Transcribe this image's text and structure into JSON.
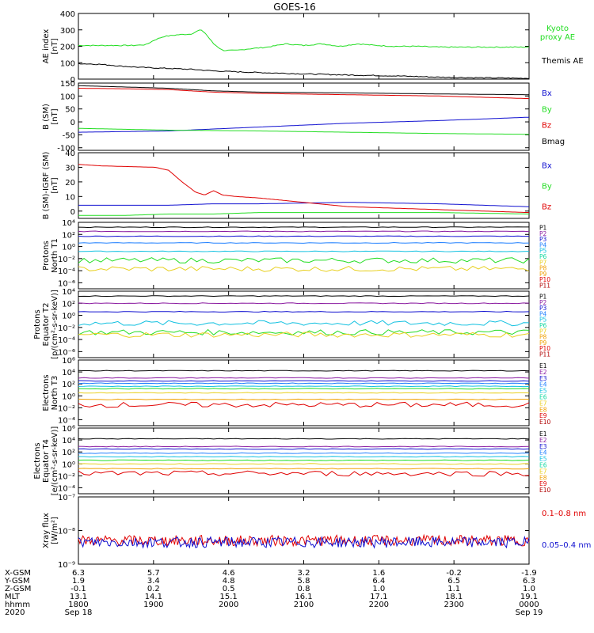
{
  "title": "GOES-16",
  "colors": {
    "black": "#000000",
    "red": "#e00000",
    "green": "#22dd22",
    "blue": "#1010d0",
    "purple": "#8a1aa0",
    "p4": "#2080ff",
    "cyan": "#10c0e0",
    "p6": "#10d8a0",
    "yellow": "#e8d020",
    "orange": "#f0a000",
    "darkred": "#b00000"
  },
  "chart_data": [
    {
      "type": "line",
      "id": "ae",
      "ylabel": "AE index\n[nT]",
      "yscale": "linear",
      "ylim": [
        0,
        400
      ],
      "yticks": [
        "400",
        "300",
        "200",
        "100",
        "0"
      ],
      "ytick_values": [
        400,
        300,
        200,
        100,
        0
      ],
      "legend": [
        "Kyoto\nproxy AE",
        "Themis AE"
      ],
      "series": [
        {
          "name": "Kyoto proxy AE",
          "color": "green",
          "x": [
            0,
            0.04,
            0.09,
            0.12,
            0.15,
            0.17,
            0.19,
            0.22,
            0.25,
            0.27,
            0.28,
            0.3,
            0.32,
            0.35,
            0.38,
            0.42,
            0.46,
            0.5,
            0.54,
            0.58,
            0.62,
            0.66,
            0.7,
            0.75,
            0.8,
            0.9,
            1.0
          ],
          "y": [
            205,
            205,
            205,
            205,
            210,
            240,
            260,
            270,
            275,
            300,
            285,
            215,
            175,
            175,
            185,
            195,
            215,
            205,
            215,
            200,
            215,
            205,
            200,
            200,
            195,
            195,
            195
          ]
        },
        {
          "name": "Themis AE",
          "color": "black",
          "x": [
            0,
            0.05,
            0.1,
            0.15,
            0.2,
            0.25,
            0.3,
            0.35,
            0.4,
            0.5,
            0.6,
            0.7,
            0.8,
            0.9,
            1.0
          ],
          "y": [
            95,
            90,
            78,
            70,
            65,
            60,
            50,
            45,
            40,
            32,
            25,
            20,
            12,
            8,
            5
          ]
        }
      ]
    },
    {
      "type": "line",
      "id": "bsm",
      "ylabel": "B (SM)\n[nT]",
      "yscale": "linear",
      "ylim": [
        -110,
        150
      ],
      "yticks": [
        "150",
        "100",
        "50",
        "0",
        "-50",
        "-100"
      ],
      "ytick_values": [
        150,
        100,
        50,
        0,
        -50,
        -100
      ],
      "legend": [
        "Bx",
        "By",
        "Bz",
        "Bmag"
      ],
      "series": [
        {
          "name": "Bx",
          "color": "blue",
          "x": [
            0,
            0.2,
            0.4,
            0.6,
            0.8,
            1.0
          ],
          "y": [
            -40,
            -35,
            -20,
            -5,
            5,
            18
          ]
        },
        {
          "name": "By",
          "color": "green",
          "x": [
            0,
            0.2,
            0.4,
            0.6,
            0.8,
            1.0
          ],
          "y": [
            -25,
            -32,
            -35,
            -40,
            -45,
            -48
          ]
        },
        {
          "name": "Bz",
          "color": "red",
          "x": [
            0,
            0.1,
            0.2,
            0.3,
            0.4,
            0.6,
            0.8,
            1.0
          ],
          "y": [
            130,
            128,
            125,
            115,
            110,
            105,
            100,
            90
          ]
        },
        {
          "name": "Bmag",
          "color": "black",
          "x": [
            0,
            0.1,
            0.2,
            0.3,
            0.4,
            0.6,
            0.8,
            1.0
          ],
          "y": [
            140,
            135,
            130,
            120,
            115,
            112,
            108,
            105
          ]
        }
      ]
    },
    {
      "type": "line",
      "id": "bigrf",
      "ylabel": "B (SM)-IGRF (SM)\n[nT]",
      "yscale": "linear",
      "ylim": [
        -5,
        40
      ],
      "yticks": [
        "40",
        "30",
        "20",
        "10",
        "0"
      ],
      "ytick_values": [
        40,
        30,
        20,
        10,
        0
      ],
      "legend": [
        "Bx",
        "By",
        "Bz"
      ],
      "series": [
        {
          "name": "Bx",
          "color": "blue",
          "x": [
            0,
            0.2,
            0.3,
            0.4,
            0.6,
            0.8,
            1.0
          ],
          "y": [
            4,
            4,
            5,
            5,
            6,
            5,
            3
          ]
        },
        {
          "name": "By",
          "color": "green",
          "x": [
            0,
            0.1,
            0.2,
            0.3,
            0.4,
            0.6,
            0.8,
            1.0
          ],
          "y": [
            -3,
            -3,
            -2,
            -2,
            -1,
            -1,
            -1,
            -2
          ]
        },
        {
          "name": "Bz",
          "color": "red",
          "x": [
            0,
            0.05,
            0.17,
            0.2,
            0.23,
            0.26,
            0.28,
            0.3,
            0.32,
            0.35,
            0.4,
            0.5,
            0.6,
            0.7,
            0.8,
            1.0
          ],
          "y": [
            32,
            31,
            30,
            28,
            20,
            13,
            11,
            14,
            11,
            10,
            9,
            6,
            3,
            2,
            1,
            -1
          ]
        }
      ]
    },
    {
      "type": "line",
      "id": "protons_t1",
      "ylabel": "Protons\nNorth T1",
      "yscale": "log",
      "ylim": [
        -7,
        4
      ],
      "yticks": [
        "10⁴",
        "10²",
        "10⁰",
        "10⁻²",
        "10⁻⁴",
        "10⁻⁶"
      ],
      "ytick_values": [
        4,
        2,
        0,
        -2,
        -4,
        -6
      ],
      "legend": [
        "P1",
        "P2",
        "P3",
        "P4",
        "P5",
        "P6",
        "P7",
        "P8",
        "P9",
        "P10",
        "P11"
      ],
      "legend_colors": [
        "black",
        "purple",
        "blue",
        "p4",
        "cyan",
        "p6",
        "yellow",
        "orange",
        "orange",
        "red",
        "darkred"
      ],
      "series": [
        {
          "name": "P1",
          "color": "black",
          "y_log10": 3.2
        },
        {
          "name": "P2",
          "color": "purple",
          "y_log10": 2.5
        },
        {
          "name": "P3",
          "color": "blue",
          "y_log10": 1.7
        },
        {
          "name": "P4",
          "color": "p4",
          "y_log10": 0.6
        },
        {
          "name": "P5",
          "color": "cyan",
          "y_log10": -0.8
        },
        {
          "name": "P6",
          "color": "green",
          "y_log10": -2.3
        },
        {
          "name": "P7",
          "color": "yellow",
          "y_log10": -3.7
        }
      ]
    },
    {
      "type": "line",
      "id": "protons_t2",
      "ylabel": "Protons\nEquator T2\n[p/(cm²-s-sr-keV)]",
      "yscale": "log",
      "ylim": [
        -7,
        4
      ],
      "yticks": [
        "10⁴",
        "10²",
        "10⁰",
        "10⁻²",
        "10⁻⁴",
        "10⁻⁶"
      ],
      "ytick_values": [
        4,
        2,
        0,
        -2,
        -4,
        -6
      ],
      "legend": [
        "P1",
        "P2",
        "P3",
        "P4",
        "P5",
        "P6",
        "P7",
        "P8",
        "P9",
        "P10",
        "P11"
      ],
      "legend_colors": [
        "black",
        "purple",
        "blue",
        "p4",
        "cyan",
        "p6",
        "yellow",
        "orange",
        "orange",
        "red",
        "darkred"
      ],
      "series": [
        {
          "name": "P1",
          "color": "black",
          "y_log10": 3.2
        },
        {
          "name": "P2",
          "color": "purple",
          "y_log10": 2.0
        },
        {
          "name": "P3",
          "color": "blue",
          "y_log10": 0.6
        },
        {
          "name": "P4",
          "color": "cyan",
          "y_log10": -1.3
        },
        {
          "name": "P5",
          "color": "green",
          "y_log10": -2.8
        },
        {
          "name": "P6",
          "color": "yellow",
          "y_log10": -3.2
        }
      ]
    },
    {
      "type": "line",
      "id": "electrons_t3",
      "ylabel": "Electrons\nNorth T3",
      "yscale": "log",
      "ylim": [
        -5,
        6
      ],
      "yticks": [
        "10⁶",
        "10⁴",
        "10²",
        "10⁰",
        "10⁻²",
        "10⁻⁴"
      ],
      "ytick_values": [
        6,
        4,
        2,
        0,
        -2,
        -4
      ],
      "legend": [
        "E1",
        "E2",
        "E3",
        "E4",
        "E5",
        "E6",
        "E7",
        "E8",
        "E9",
        "E10"
      ],
      "legend_colors": [
        "black",
        "purple",
        "blue",
        "p4",
        "cyan",
        "p6",
        "yellow",
        "orange",
        "red",
        "darkred"
      ],
      "series": [
        {
          "name": "E1",
          "color": "black",
          "y_log10": 4.2
        },
        {
          "name": "E2",
          "color": "purple",
          "y_log10": 3.0
        },
        {
          "name": "E3",
          "color": "blue",
          "y_log10": 2.5
        },
        {
          "name": "E4",
          "color": "p4",
          "y_log10": 2.1
        },
        {
          "name": "E5",
          "color": "cyan",
          "y_log10": 1.6
        },
        {
          "name": "E6",
          "color": "green",
          "y_log10": 1.2
        },
        {
          "name": "E7",
          "color": "yellow",
          "y_log10": 0.5
        },
        {
          "name": "E8",
          "color": "orange",
          "y_log10": -0.6
        },
        {
          "name": "E9",
          "color": "red",
          "y_log10": -1.5
        }
      ]
    },
    {
      "type": "line",
      "id": "electrons_t4",
      "ylabel": "Electrons\nEquator T4\n[e/(cm²-s-sr-keV)]",
      "yscale": "log",
      "ylim": [
        -5,
        6
      ],
      "yticks": [
        "10⁶",
        "10⁴",
        "10²",
        "10⁰",
        "10⁻²",
        "10⁻⁴"
      ],
      "ytick_values": [
        6,
        4,
        2,
        0,
        -2,
        -4
      ],
      "legend": [
        "E1",
        "E2",
        "E3",
        "E4",
        "E5",
        "E6",
        "E7",
        "E8",
        "E9",
        "E10"
      ],
      "legend_colors": [
        "black",
        "purple",
        "blue",
        "p4",
        "cyan",
        "p6",
        "yellow",
        "orange",
        "red",
        "darkred"
      ],
      "series": [
        {
          "name": "E1",
          "color": "black",
          "y_log10": 4.2
        },
        {
          "name": "E2",
          "color": "purple",
          "y_log10": 2.9
        },
        {
          "name": "E3",
          "color": "blue",
          "y_log10": 2.5
        },
        {
          "name": "E4",
          "color": "p4",
          "y_log10": 1.8
        },
        {
          "name": "E5",
          "color": "cyan",
          "y_log10": 1.2
        },
        {
          "name": "E6",
          "color": "green",
          "y_log10": 0.6
        },
        {
          "name": "E7",
          "color": "yellow",
          "y_log10": 0.0
        },
        {
          "name": "E8",
          "color": "orange",
          "y_log10": -0.8
        },
        {
          "name": "E9",
          "color": "red",
          "y_log10": -1.6
        }
      ]
    },
    {
      "type": "line",
      "id": "xray",
      "ylabel": "Xray flux\n[W/m²]",
      "yscale": "log",
      "ylim": [
        -9,
        -7
      ],
      "yticks": [
        "10⁻⁷",
        "10⁻⁸",
        "10⁻⁹"
      ],
      "ytick_values": [
        -7,
        -8,
        -9
      ],
      "legend": [
        "0.1–0.8 nm",
        "0.05–0.4 nm"
      ],
      "series": [
        {
          "name": "0.1–0.8 nm",
          "color": "red",
          "y_log10": -8.3
        },
        {
          "name": "0.05–0.4 nm",
          "color": "blue",
          "y_log10": -8.35
        }
      ]
    }
  ],
  "x_axis": {
    "row_labels": [
      "X-GSM",
      "Y-GSM",
      "Z-GSM",
      "MLT",
      "hhmm",
      "2020"
    ],
    "columns": [
      [
        "6.3",
        "1.9",
        "-0.1",
        "13.1",
        "1800",
        "Sep 18"
      ],
      [
        "5.7",
        "3.4",
        "0.2",
        "14.1",
        "1900",
        ""
      ],
      [
        "4.6",
        "4.8",
        "0.5",
        "15.1",
        "2000",
        ""
      ],
      [
        "3.2",
        "5.8",
        "0.8",
        "16.1",
        "2100",
        ""
      ],
      [
        "1.6",
        "6.4",
        "1.0",
        "17.1",
        "2200",
        ""
      ],
      [
        "-0.2",
        "6.5",
        "1.1",
        "18.1",
        "2300",
        ""
      ],
      [
        "-1.9",
        "6.3",
        "1.0",
        "19.1",
        "0000",
        "Sep 19"
      ]
    ]
  }
}
